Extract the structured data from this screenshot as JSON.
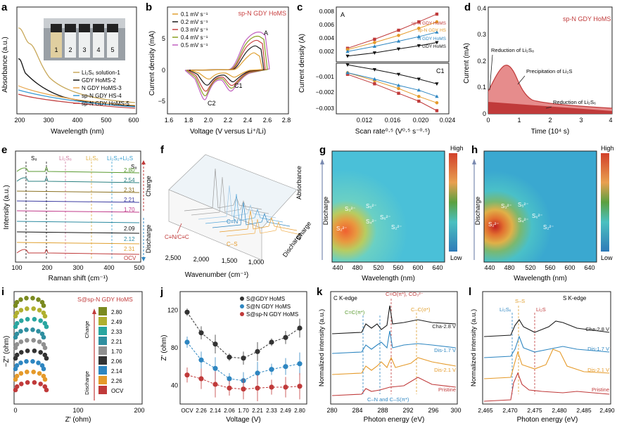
{
  "panels": {
    "a": {
      "letter": "a",
      "ylabel": "Absorbance (a.u.)",
      "xlabel": "Wavelength (nm)",
      "xticks": [
        "200",
        "300",
        "400",
        "500",
        "600"
      ],
      "vial_numbers": [
        "1",
        "2",
        "3",
        "4",
        "5"
      ],
      "legend": [
        "Li₂S₆ solution-1",
        "GDY HoMS-2",
        "N GDY HoMS-3",
        "sp-N GDY HS-4",
        "sp-N GDY HoMS-5"
      ],
      "colors": [
        "#c8a85a",
        "#111111",
        "#e8a54a",
        "#3a9bd4",
        "#c24040"
      ]
    },
    "b": {
      "letter": "b",
      "title": "sp-N GDY HoMS",
      "ylabel": "Current density (mA)",
      "xlabel": "Voltage (V versus Li⁺/Li)",
      "xticks": [
        "1.6",
        "1.8",
        "2.0",
        "2.2",
        "2.4",
        "2.6",
        "2.8"
      ],
      "yticks": [
        "5",
        "0",
        "−5"
      ],
      "legend": [
        "0.1 mV s⁻¹",
        "0.2 mV s⁻¹",
        "0.3 mV s⁻¹",
        "0.4 mV s⁻¹",
        "0.5 mV s⁻¹"
      ],
      "colors": [
        "#e0a030",
        "#1a1a1a",
        "#c84040",
        "#8aa020",
        "#c060c0"
      ],
      "annotations": [
        "A",
        "C1",
        "C2"
      ]
    },
    "c": {
      "letter": "c",
      "ylabel": "Current density (A)",
      "xlabel": "Scan rate⁰·⁵ (V⁰·⁵ s⁻⁰·⁵)",
      "xticks": [
        "0.012",
        "0.016",
        "0.020",
        "0.024"
      ],
      "yticks_top": [
        "0.008",
        "0.006",
        "0.004",
        "0.002"
      ],
      "yticks_bottom": [
        "−0.001",
        "−0.002",
        "−0.003"
      ],
      "legend": [
        "sp-N GDY HoMS",
        "sp-N GDY HS",
        "N GDY HoMS",
        "GDY HoMS"
      ],
      "colors": [
        "#c03a3a",
        "#e59a2a",
        "#2e86c1",
        "#111111"
      ],
      "annotations": [
        "A",
        "C1"
      ],
      "x": [
        0.0105,
        0.0141,
        0.0173,
        0.02,
        0.0224
      ],
      "anodic": {
        "sp-N GDY HoMS": [
          0.0021,
          0.0035,
          0.0049,
          0.0062,
          0.0074
        ],
        "sp-N GDY HS": [
          0.0019,
          0.003,
          0.0041,
          0.0052,
          0.0062
        ],
        "N GDY HoMS": [
          0.0016,
          0.0024,
          0.0032,
          0.0039,
          0.0046
        ],
        "GDY HoMS": [
          0.0009,
          0.0014,
          0.002,
          0.0025,
          0.003
        ]
      },
      "cathodic": {
        "sp-N GDY HoMS": [
          -0.0007,
          -0.0013,
          -0.0019,
          -0.0024,
          -0.003
        ],
        "sp-N GDY HS": [
          -0.0006,
          -0.0011,
          -0.0016,
          -0.0021,
          -0.0025
        ],
        "N GDY HoMS": [
          -0.0006,
          -0.001,
          -0.0014,
          -0.0017,
          -0.0021
        ],
        "GDY HoMS": [
          -0.0001,
          -0.0004,
          -0.0007,
          -0.001,
          -0.0013
        ]
      }
    },
    "d": {
      "letter": "d",
      "title": "sp-N GDY HoMS",
      "ylabel": "Current (mA)",
      "xlabel": "Time (10⁴ s)",
      "xticks": [
        "0",
        "1",
        "2",
        "3",
        "4"
      ],
      "yticks": [
        "0",
        "0.1",
        "0.2",
        "0.3",
        "0.4"
      ],
      "annotations": [
        "Reduction of Li₂S₈",
        "Precipitation of Li₂S",
        "Reduction of Li₂S₆"
      ]
    },
    "e": {
      "letter": "e",
      "ylabel": "Intensity (a.u.)",
      "xlabel": "Raman shift (cm⁻¹)",
      "xticks": [
        "100",
        "200",
        "300",
        "400",
        "500"
      ],
      "voltages": [
        "2.80",
        "2.54",
        "2.31",
        "2.21",
        "1.70",
        "2.09",
        "2.12",
        "2.31",
        "OCV"
      ],
      "top_labels": [
        "S₈",
        "Li₂S₈",
        "Li₂S₆",
        "Li₂S₂+Li₂S",
        "S₈"
      ],
      "side_labels": [
        "Charge",
        "Discharge"
      ]
    },
    "f": {
      "letter": "f",
      "xlabel": "Wavenumber (cm⁻¹)",
      "xticks": [
        "2,500",
        "2,000",
        "1,500",
        "1,000"
      ],
      "zlabel": "Absorbance",
      "side_labels": [
        "Discharge",
        "Charge"
      ],
      "annotations": [
        "C≡N/C≡C",
        "C=N",
        "C–S"
      ]
    },
    "g": {
      "letter": "g",
      "ylabel": "Discharge",
      "xlabel": "Wavelength (nm)",
      "xticks": [
        "440",
        "480",
        "520",
        "560",
        "600",
        "640"
      ],
      "scale": [
        "High",
        "Low"
      ],
      "species": [
        "S₂²⁻",
        "S₃²⁻",
        "S₄²⁻",
        "S₅²⁻",
        "S₆²⁻",
        "S₂²⁻"
      ]
    },
    "h": {
      "letter": "h",
      "ylabel": "Discharge",
      "xlabel": "Wavelength (nm)",
      "xticks": [
        "440",
        "480",
        "520",
        "560",
        "600",
        "640"
      ],
      "scale": [
        "High",
        "Low"
      ],
      "species": [
        "S₂²⁻",
        "S₃²⁻",
        "S₄²⁻",
        "S₅²⁻",
        "S₆²⁻",
        "S₂²⁻"
      ]
    },
    "i": {
      "letter": "i",
      "title": "S@sp-N GDY HoMS",
      "ylabel": "−Z″ (ohm)",
      "xlabel": "Z′ (ohm)",
      "xticks": [
        "0",
        "100",
        "200"
      ],
      "levels": [
        "2.80",
        "2.49",
        "2.33",
        "2.21",
        "1.70",
        "2.06",
        "2.14",
        "2.26",
        "OCV"
      ],
      "level_colors": [
        "#7a8a20",
        "#b0b030",
        "#2aa6a0",
        "#2f8fa0",
        "#909090",
        "#333333",
        "#2e86c1",
        "#e59a2a",
        "#c03a3a"
      ],
      "side_labels": [
        "Charge",
        "Discharge"
      ]
    },
    "j": {
      "letter": "j",
      "ylabel": "Z′ (ohm)",
      "xlabel": "Voltage (V)",
      "categories": [
        "OCV",
        "2.26",
        "2.14",
        "2.06",
        "1.70",
        "2.21",
        "2.33",
        "2.49",
        "2.80"
      ],
      "yticks": [
        "40",
        "80",
        "120"
      ],
      "legend": [
        "S@GDY HoMS",
        "S@N GDY HoMS",
        "S@sp-N GDY HoMS"
      ],
      "colors": [
        "#333333",
        "#2e86c1",
        "#c03a3a"
      ],
      "series": [
        {
          "name": "S@GDY HoMS",
          "values": [
            118,
            96,
            84,
            70,
            69,
            76,
            86,
            91,
            101
          ]
        },
        {
          "name": "S@N GDY HoMS",
          "values": [
            86,
            67,
            58,
            47,
            45,
            53,
            57,
            60,
            63
          ]
        },
        {
          "name": "S@sp-N GDY HoMS",
          "values": [
            51,
            47,
            41,
            37,
            36,
            37,
            38,
            38,
            39
          ]
        }
      ],
      "ylim": [
        20,
        140
      ]
    },
    "k": {
      "letter": "k",
      "title": "C K-edge",
      "ylabel": "Normalized intensity (a.u.)",
      "xlabel": "Photon energy (eV)",
      "xticks": [
        "280",
        "284",
        "288",
        "292",
        "296",
        "300"
      ],
      "curve_labels": [
        "Cha-2.8 V",
        "Dis-1.7 V",
        "Dis-2.1 V",
        "Pristine"
      ],
      "colors": [
        "#1a1a1a",
        "#2e86c1",
        "#e59a2a",
        "#c03a3a"
      ],
      "annotations": [
        "C=C(π*)",
        "C=O(π*), CO₃²⁻",
        "C–C(σ*)",
        "C–N and C–S(π*)"
      ]
    },
    "l": {
      "letter": "l",
      "title": "S K-edge",
      "ylabel": "Normalized intensity (a.u.)",
      "xlabel": "Photon energy (eV)",
      "xticks": [
        "2,465",
        "2,470",
        "2,475",
        "2,480",
        "2,485",
        "2,490"
      ],
      "curve_labels": [
        "Cha-2.8 V",
        "Dis-1.7 V",
        "Dis-2.1 V",
        "Pristine"
      ],
      "colors": [
        "#1a1a1a",
        "#2e86c1",
        "#e59a2a",
        "#c03a3a"
      ],
      "annotations": [
        "Li₂Sₓ",
        "S–S",
        "Li₂S"
      ]
    }
  }
}
